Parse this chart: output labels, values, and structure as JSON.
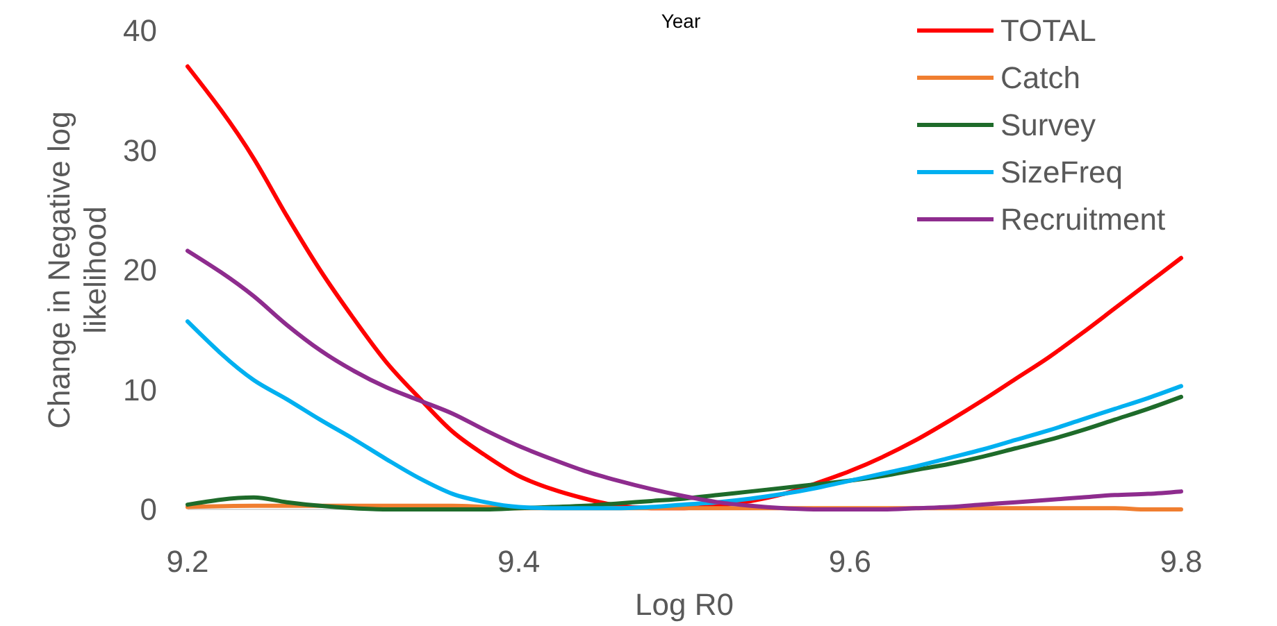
{
  "chart_data": {
    "type": "line",
    "xlabel": "Log R0",
    "ylabel": "Change in Negative log likelihood",
    "annotations": [
      "Year"
    ],
    "x": [
      9.2,
      9.24,
      9.26,
      9.28,
      9.3,
      9.32,
      9.34,
      9.36,
      9.38,
      9.4,
      9.42,
      9.44,
      9.46,
      9.48,
      9.5,
      9.52,
      9.54,
      9.56,
      9.58,
      9.6,
      9.62,
      9.64,
      9.66,
      9.68,
      9.7,
      9.72,
      9.74,
      9.76,
      9.78,
      9.8
    ],
    "xlim": [
      9.2,
      9.8
    ],
    "xticks": [
      9.2,
      9.4,
      9.6,
      9.8
    ],
    "ylim": [
      0,
      40
    ],
    "yticks": [
      0,
      10,
      20,
      30,
      40
    ],
    "grid": false,
    "legend": "top right",
    "series": [
      {
        "name": "TOTAL",
        "color": "#ff0000",
        "values": [
          37,
          29.3,
          24.5,
          20,
          16,
          12.3,
          9.3,
          6.5,
          4.5,
          2.8,
          1.7,
          0.9,
          0.3,
          0.1,
          0.1,
          0.3,
          0.7,
          1.3,
          2.2,
          3.2,
          4.4,
          5.8,
          7.4,
          9.1,
          10.9,
          12.7,
          14.7,
          16.8,
          18.9,
          21
        ]
      },
      {
        "name": "Catch",
        "color": "#f07e30",
        "values": [
          0.2,
          0.3,
          0.3,
          0.3,
          0.3,
          0.3,
          0.3,
          0.3,
          0.2,
          0.1,
          0.1,
          0.1,
          0.1,
          0.1,
          0.1,
          0.1,
          0.1,
          0.1,
          0.1,
          0.1,
          0.1,
          0.1,
          0.1,
          0.1,
          0.1,
          0.1,
          0.1,
          0.1,
          0,
          0
        ]
      },
      {
        "name": "Survey",
        "color": "#1e6b2a",
        "values": [
          0.4,
          1,
          0.6,
          0.3,
          0.1,
          0,
          0,
          0,
          0,
          0.1,
          0.2,
          0.3,
          0.5,
          0.7,
          0.9,
          1.2,
          1.5,
          1.8,
          2.1,
          2.4,
          2.8,
          3.3,
          3.8,
          4.4,
          5.1,
          5.8,
          6.6,
          7.5,
          8.4,
          9.4
        ]
      },
      {
        "name": "SizeFreq",
        "color": "#00b0f0",
        "values": [
          15.7,
          10.8,
          9.2,
          7.5,
          5.9,
          4.2,
          2.6,
          1.3,
          0.6,
          0.2,
          0.1,
          0.1,
          0.1,
          0.2,
          0.4,
          0.6,
          0.9,
          1.3,
          1.8,
          2.4,
          3,
          3.6,
          4.3,
          5,
          5.8,
          6.6,
          7.5,
          8.4,
          9.3,
          10.3
        ]
      },
      {
        "name": "Recruitment",
        "color": "#8e2c8e",
        "values": [
          21.6,
          17.8,
          15.4,
          13.3,
          11.6,
          10.2,
          9.1,
          8,
          6.6,
          5.3,
          4.2,
          3.2,
          2.4,
          1.7,
          1.1,
          0.6,
          0.3,
          0.1,
          0,
          0,
          0,
          0.1,
          0.2,
          0.4,
          0.6,
          0.8,
          1,
          1.2,
          1.3,
          1.5
        ]
      }
    ]
  }
}
